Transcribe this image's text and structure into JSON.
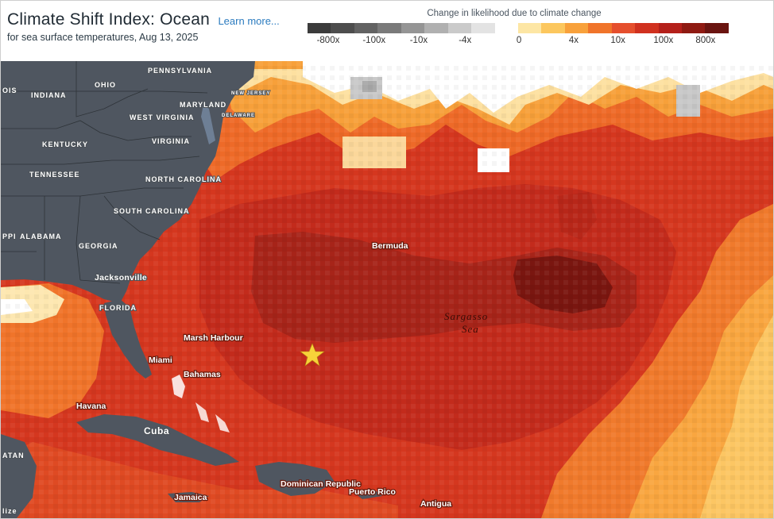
{
  "header": {
    "title": "Climate Shift Index: Ocean",
    "learn_more": "Learn more...",
    "subtitle": "for sea surface temperatures, Aug 13, 2025"
  },
  "legend": {
    "title": "Change in likelihood due to climate change",
    "colors": [
      "#3b3b3b",
      "#4d4d4d",
      "#626262",
      "#7a7a7a",
      "#959595",
      "#b0b0b0",
      "#cacaca",
      "#e3e3e3",
      "#ffffff",
      "#fde6a4",
      "#fcc75e",
      "#f8a13b",
      "#f0742a",
      "#e54f2d",
      "#d0311f",
      "#b4201a",
      "#8f1a12",
      "#6a1410"
    ],
    "ticks": [
      "-800x",
      "-100x",
      "-10x",
      "-4x",
      "0",
      "4x",
      "10x",
      "100x",
      "800x"
    ]
  },
  "map": {
    "state_labels": [
      "PENNSYLVANIA",
      "OHIO",
      "INDIANA",
      "MARYLAND",
      "WEST VIRGINIA",
      "VIRGINIA",
      "KENTUCKY",
      "TENNESSEE",
      "NORTH CAROLINA",
      "SOUTH CAROLINA",
      "GEORGIA",
      "ALABAMA",
      "FLORIDA",
      "DELAWARE",
      "NEW JERSEY",
      "OIS",
      "PPI"
    ],
    "city_labels": [
      "Jacksonville",
      "Miami",
      "Marsh Harbour",
      "Bahamas",
      "Havana",
      "Cuba",
      "Bermuda",
      "Dominican Republic",
      "Puerto Rico",
      "Jamaica",
      "Antigua",
      "ATAN",
      "lize"
    ],
    "ocean_label": [
      "Sargasso",
      "Sea"
    ],
    "marker": "star"
  }
}
